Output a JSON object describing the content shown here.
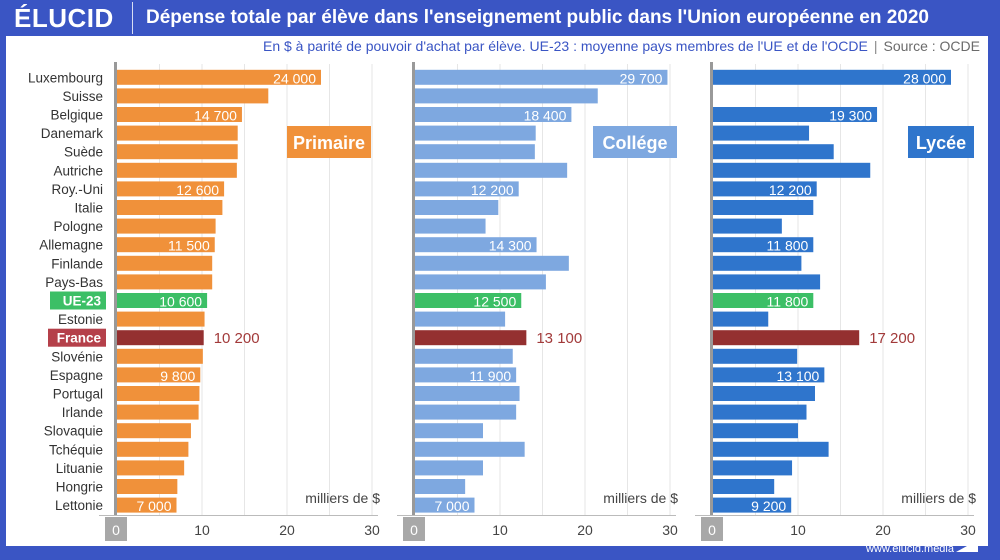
{
  "header": {
    "logo": "ÉLUCID",
    "title": "Dépense totale par élève dans l'enseignement public dans l'Union européenne en 2020",
    "subtitle": "En $ à parité de pouvoir d'achat par élève. UE-23 : moyenne pays membres de l'UE et de l'OCDE",
    "subtitle_sep": "|",
    "source": "Source : OCDE"
  },
  "footer": {
    "url": "www.elucid.media"
  },
  "colors": {
    "brand": "#3a55c4",
    "primaire": "#f0913a",
    "college": "#7ea8e0",
    "lycee": "#2f75cc",
    "ue23": "#3cbf66",
    "france": "#943030",
    "france_label": "#b5404a",
    "axis": "#999999"
  },
  "chart_data": {
    "type": "bar",
    "orientation": "horizontal",
    "title": "Dépense totale par élève dans l'enseignement public dans l'Union européenne en 2020",
    "subtitle": "En $ à parité de pouvoir d'achat par élève. UE-23 : moyenne pays membres de l'UE et de l'OCDE | Source : OCDE",
    "xlabel": "milliers de $",
    "xlim": [
      0,
      30
    ],
    "xticks": [
      "0",
      "10",
      "20",
      "30"
    ],
    "grid": true,
    "categories": [
      "Luxembourg",
      "Suisse",
      "Belgique",
      "Danemark",
      "Suède",
      "Autriche",
      "Roy.-Uni",
      "Italie",
      "Pologne",
      "Allemagne",
      "Finlande",
      "Pays-Bas",
      "UE-23",
      "Estonie",
      "France",
      "Slovénie",
      "Espagne",
      "Portugal",
      "Irlande",
      "Slovaquie",
      "Tchéquie",
      "Lituanie",
      "Hongrie",
      "Lettonie"
    ],
    "highlight": {
      "UE-23": "ue23",
      "France": "france"
    },
    "series": [
      {
        "name": "Primaire",
        "color_key": "primaire",
        "values": [
          24.0,
          17.8,
          14.7,
          14.2,
          14.2,
          14.1,
          12.6,
          12.4,
          11.6,
          11.5,
          11.2,
          11.2,
          10.6,
          10.3,
          10.2,
          10.1,
          9.8,
          9.7,
          9.6,
          8.7,
          8.4,
          7.9,
          7.1,
          7.0
        ],
        "labels": [
          "24 000",
          null,
          "14 700",
          null,
          null,
          null,
          "12 600",
          null,
          null,
          "11 500",
          null,
          null,
          "10 600",
          null,
          "10 200",
          null,
          "9 800",
          null,
          null,
          null,
          null,
          null,
          null,
          "7 000"
        ]
      },
      {
        "name": "Collége",
        "color_key": "college",
        "values": [
          29.7,
          21.5,
          18.4,
          14.2,
          14.1,
          17.9,
          12.2,
          9.8,
          8.3,
          14.3,
          18.1,
          15.4,
          12.5,
          10.6,
          13.1,
          11.5,
          11.9,
          12.3,
          11.9,
          8.0,
          12.9,
          8.0,
          5.9,
          7.0
        ],
        "labels": [
          "29 700",
          null,
          "18 400",
          null,
          null,
          null,
          "12 200",
          null,
          null,
          "14 300",
          null,
          null,
          "12 500",
          null,
          "13 100",
          null,
          "11 900",
          null,
          null,
          null,
          null,
          null,
          null,
          "7 000"
        ]
      },
      {
        "name": "Lycée",
        "color_key": "lycee",
        "values": [
          28.0,
          null,
          19.3,
          11.3,
          14.2,
          18.5,
          12.2,
          11.8,
          8.1,
          11.8,
          10.4,
          12.6,
          11.8,
          6.5,
          17.2,
          9.9,
          13.1,
          12.0,
          11.0,
          10.0,
          13.6,
          9.3,
          7.2,
          9.2
        ],
        "labels": [
          "28 000",
          null,
          "19 300",
          null,
          null,
          null,
          "12 200",
          null,
          null,
          "11 800",
          null,
          null,
          "11 800",
          null,
          "17 200",
          null,
          "13 100",
          null,
          null,
          null,
          null,
          null,
          null,
          "9 200"
        ]
      }
    ]
  }
}
